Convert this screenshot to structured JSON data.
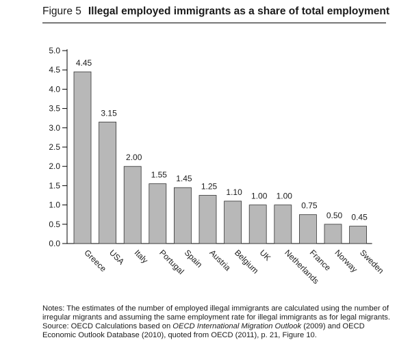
{
  "figure": {
    "number": "Figure 5",
    "title": "Illegal employed immigrants as a share of total employment"
  },
  "chart_data": {
    "type": "bar",
    "categories": [
      "Greece",
      "USA",
      "Italy",
      "Portugal",
      "Spain",
      "Austria",
      "Belgium",
      "UK",
      "Netherlands",
      "France",
      "Norway",
      "Sweden"
    ],
    "values": [
      4.45,
      3.15,
      2.0,
      1.55,
      1.45,
      1.25,
      1.1,
      1.0,
      1.0,
      0.75,
      0.5,
      0.45
    ],
    "value_labels": [
      "4.45",
      "3.15",
      "2.00",
      "1.55",
      "1.45",
      "1.25",
      "1.10",
      "1.00",
      "1.00",
      "0.75",
      "0.50",
      "0.45"
    ],
    "yticks": [
      "0.0",
      "0.5",
      "1.0",
      "1.5",
      "2.0",
      "2.5",
      "3.0",
      "3.5",
      "4.0",
      "4.5",
      "5.0"
    ],
    "ylim": [
      0,
      5
    ],
    "grid": false,
    "bar_color": "#b8b8b8",
    "bar_edge_color": "#333333"
  },
  "notes": {
    "line1": "Notes: The estimates of the number of employed illegal immigrants are calculated using the number of irregular migrants and assuming the same employment rate for illegal immigrants as for legal migrants.",
    "source_prefix": "Source: OECD Calculations based on ",
    "source_link": "OECD International Migration Outlook",
    "source_suffix": " (2009) and OECD Economic Outlook Database (2010), quoted from OECD (2011), p. 21, Figure 10."
  }
}
